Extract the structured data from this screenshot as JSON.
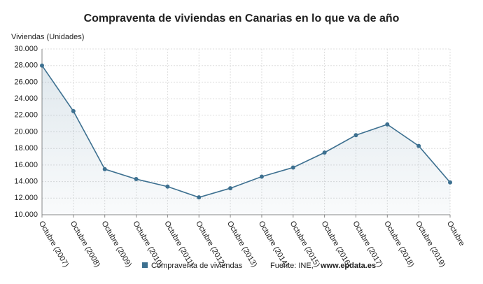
{
  "chart_data": {
    "type": "line",
    "title": "Compraventa de viviendas en Canarias en lo que va de año",
    "y_label": "Viviendas (Unidades)",
    "categories": [
      "Octubre (2007)",
      "Octubre (2008)",
      "Octubre (2009)",
      "Octubre (2010)",
      "Octubre (2011)",
      "Octubre (2012)",
      "Octubre (2013)",
      "Octubre (2014)",
      "Octubre (2015)",
      "Octubre (2016)",
      "Octubre (2017)",
      "Octubre (2018)",
      "Octubre (2019)",
      "Octubre"
    ],
    "series": [
      {
        "name": "Compraventa de viviendas",
        "color": "#3d7090",
        "values": [
          28000,
          22500,
          15500,
          14300,
          13400,
          12100,
          13200,
          14600,
          15700,
          17500,
          19600,
          20900,
          18300,
          13900
        ]
      }
    ],
    "ylim": [
      10000,
      30000
    ],
    "yticks": [
      {
        "value": 10000,
        "label": "10.000"
      },
      {
        "value": 12000,
        "label": "12.000"
      },
      {
        "value": 14000,
        "label": "14.000"
      },
      {
        "value": 16000,
        "label": "16.000"
      },
      {
        "value": 18000,
        "label": "18.000"
      },
      {
        "value": 20000,
        "label": "20.000"
      },
      {
        "value": 22000,
        "label": "22.000"
      },
      {
        "value": 24000,
        "label": "24.000"
      },
      {
        "value": 26000,
        "label": "26.000"
      },
      {
        "value": 28000,
        "label": "28.000"
      },
      {
        "value": 30000,
        "label": "30.000"
      }
    ],
    "grid": true,
    "area": true,
    "source": {
      "text": "Fuente: INE,",
      "site": "www.epdata.es"
    }
  }
}
